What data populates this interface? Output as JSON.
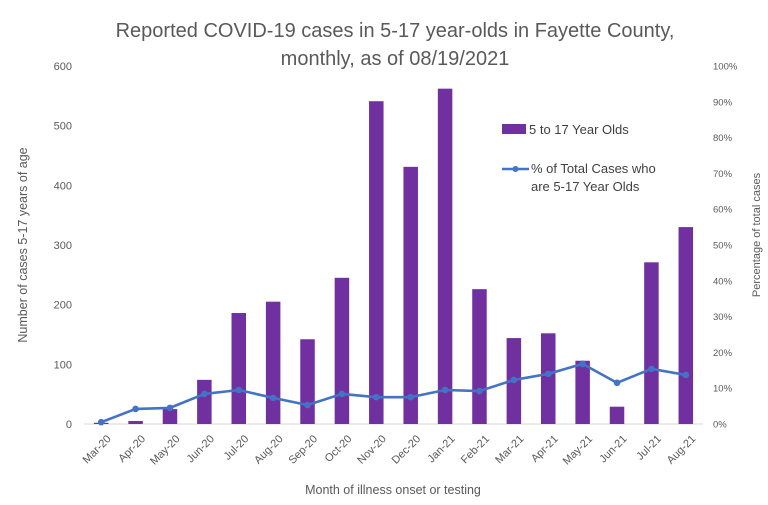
{
  "chart_data": {
    "type": "bar",
    "title_lines": [
      "Reported COVID-19 cases in 5-17 year-olds in Fayette County,",
      "monthly, as of 08/19/2021"
    ],
    "xlabel": "Month of illness onset or testing",
    "ylabel": "Number of cases 5-17 years of age",
    "y2label": "Percentage of total cases",
    "ylim": [
      0,
      600
    ],
    "y_ticks": [
      "0",
      "100",
      "200",
      "300",
      "400",
      "500",
      "600"
    ],
    "y2lim": [
      0,
      100
    ],
    "y2_ticks": [
      "0%",
      "10%",
      "20%",
      "30%",
      "40%",
      "50%",
      "60%",
      "70%",
      "80%",
      "90%",
      "100%"
    ],
    "grid": false,
    "legend_position": "top-right",
    "categories": [
      "Mar-20",
      "Apr-20",
      "May-20",
      "Jun-20",
      "Jul-20",
      "Aug-20",
      "Sep-20",
      "Oct-20",
      "Nov-20",
      "Dec-20",
      "Jan-21",
      "Feb-21",
      "Mar-21",
      "Apr-21",
      "May-21",
      "Jun-21",
      "Jul-21",
      "Aug-21"
    ],
    "series": [
      {
        "name": "5 to 17 Year Olds",
        "type": "bar",
        "axis": "left",
        "color": "#7030A0",
        "values": [
          2,
          5,
          25,
          74,
          186,
          205,
          142,
          245,
          541,
          431,
          562,
          226,
          144,
          152,
          106,
          29,
          271,
          330
        ]
      },
      {
        "name": "% of Total Cases who are 5-17 Year Olds",
        "legend_lines": [
          "% of Total Cases who",
          "are 5-17 Year Olds"
        ],
        "type": "line",
        "axis": "right",
        "color": "#4472C4",
        "values": [
          0.5,
          4.2,
          4.5,
          8.4,
          9.5,
          7.3,
          5.3,
          8.4,
          7.5,
          7.5,
          9.5,
          9.2,
          12.3,
          14.0,
          16.8,
          11.5,
          15.4,
          13.7
        ]
      }
    ]
  }
}
